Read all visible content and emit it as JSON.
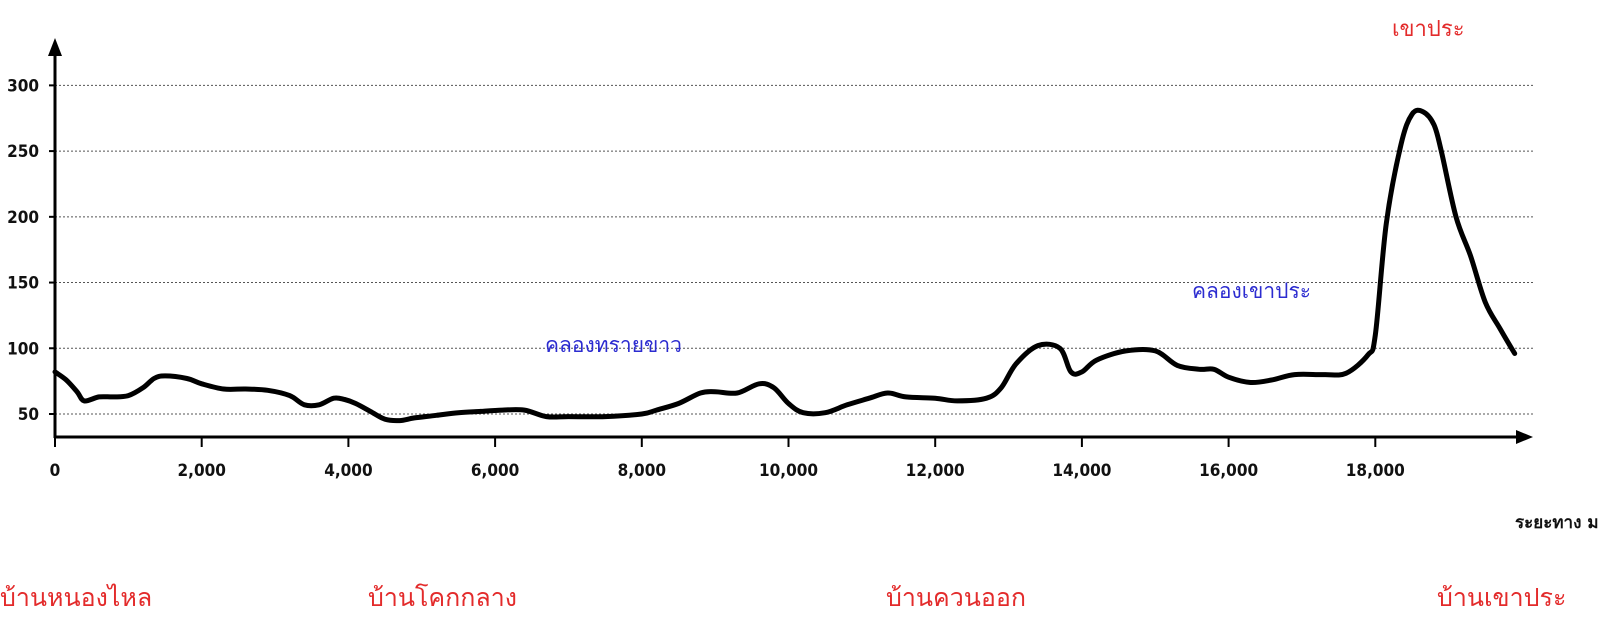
{
  "chart_data": {
    "type": "line",
    "xlabel": "ระยะทาง ม.",
    "ylabel": "",
    "xlim": [
      0,
      20000
    ],
    "ylim": [
      30,
      320
    ],
    "grid": true,
    "x_ticks": [
      0,
      2000,
      4000,
      6000,
      8000,
      10000,
      12000,
      14000,
      16000,
      18000
    ],
    "x_tick_labels": [
      "0",
      "2,000",
      "4,000",
      "6,000",
      "8,000",
      "10,000",
      "12,000",
      "14,000",
      "16,000",
      "18,000"
    ],
    "y_ticks": [
      50,
      100,
      150,
      200,
      250,
      300
    ],
    "y_tick_labels": [
      "50",
      "100",
      "150",
      "200",
      "250",
      "300"
    ],
    "series": [
      {
        "color": "#000000",
        "x": [
          0,
          150,
          300,
          400,
          600,
          800,
          1000,
          1200,
          1350,
          1500,
          1800,
          2000,
          2300,
          2600,
          2900,
          3200,
          3400,
          3600,
          3800,
          3950,
          4100,
          4300,
          4500,
          4700,
          4900,
          5200,
          5500,
          5800,
          6100,
          6400,
          6700,
          7000,
          7500,
          8000,
          8200,
          8500,
          8800,
          9000,
          9300,
          9600,
          9800,
          10000,
          10200,
          10500,
          10800,
          11100,
          11350,
          11600,
          12000,
          12300,
          12700,
          12900,
          13100,
          13400,
          13700,
          13850,
          14000,
          14200,
          14600,
          15000,
          15300,
          15600,
          15800,
          16000,
          16300,
          16600,
          16900,
          17300,
          17600,
          17900,
          18000,
          18150,
          18350,
          18500,
          18650,
          18800,
          18900,
          19100,
          19300,
          19500,
          19700,
          19900
        ],
        "y": [
          82,
          76,
          67,
          60,
          63,
          63,
          64,
          70,
          77,
          79,
          77,
          73,
          69,
          69,
          68,
          64,
          57,
          57,
          62,
          61,
          58,
          52,
          46,
          45,
          47,
          49,
          51,
          52,
          53,
          53,
          48,
          48,
          48,
          50,
          53,
          58,
          66,
          67,
          66,
          73,
          70,
          58,
          51,
          51,
          57,
          62,
          66,
          63,
          62,
          60,
          62,
          70,
          88,
          102,
          100,
          82,
          82,
          91,
          98,
          98,
          87,
          84,
          84,
          78,
          74,
          76,
          80,
          80,
          81,
          95,
          110,
          195,
          255,
          278,
          280,
          270,
          250,
          200,
          170,
          135,
          115,
          96
        ]
      }
    ],
    "annotations": {
      "peak_label": "เขาประ",
      "streams": [
        "คลองทรายขาว",
        "คลองเขาประ"
      ],
      "villages": [
        "บ้านหนองไหล",
        "บ้านโคกกลาง",
        "บ้านควนออก",
        "บ้านเขาประ"
      ]
    }
  }
}
